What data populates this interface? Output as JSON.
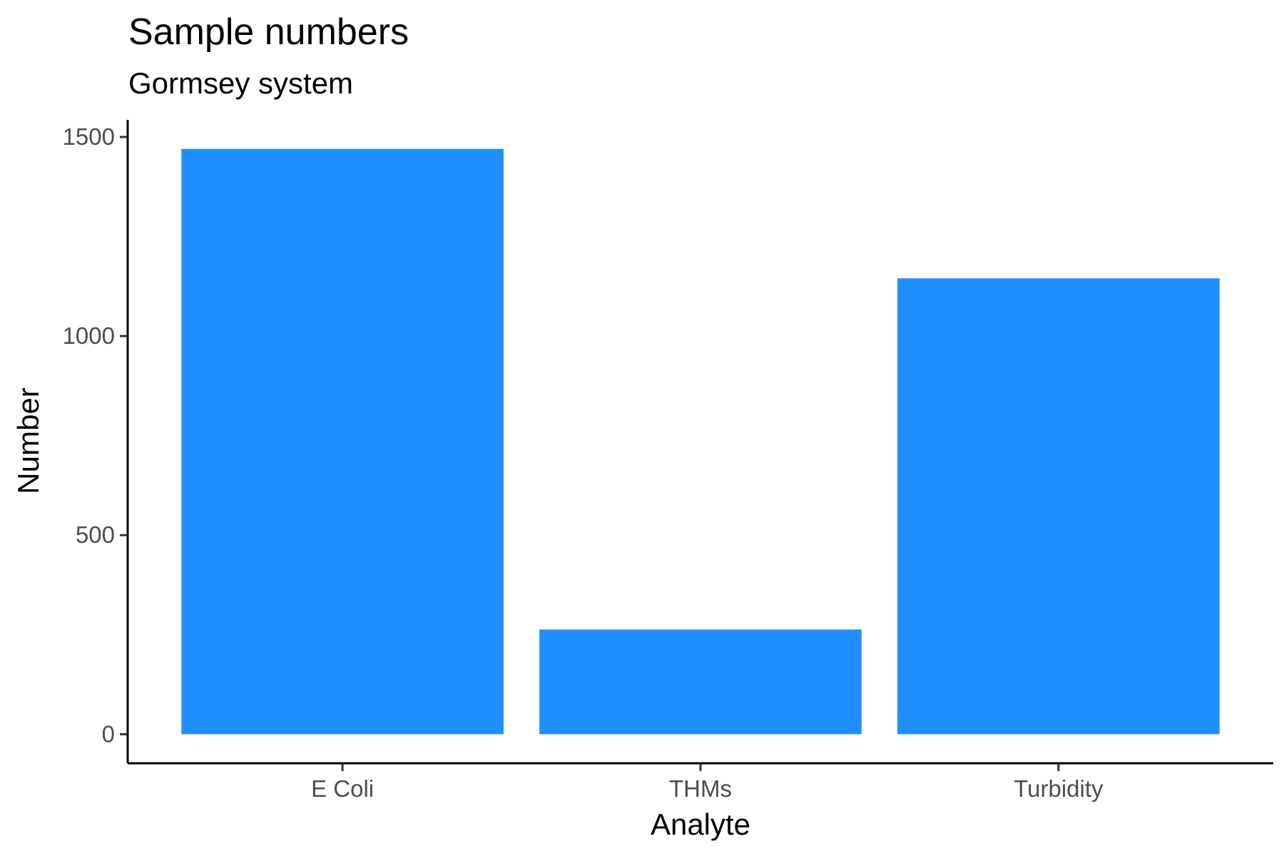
{
  "chart_data": {
    "type": "bar",
    "title": "Sample numbers",
    "subtitle": "Gormsey system",
    "xlabel": "Analyte",
    "ylabel": "Number",
    "categories": [
      "E Coli",
      "THMs",
      "Turbidity"
    ],
    "values": [
      1470,
      263,
      1145
    ],
    "ylim": [
      -73,
      1543
    ],
    "yticks": [
      0,
      500,
      1000,
      1500
    ],
    "bar_color": "#1f8fff",
    "grid": false,
    "legend": "none"
  }
}
